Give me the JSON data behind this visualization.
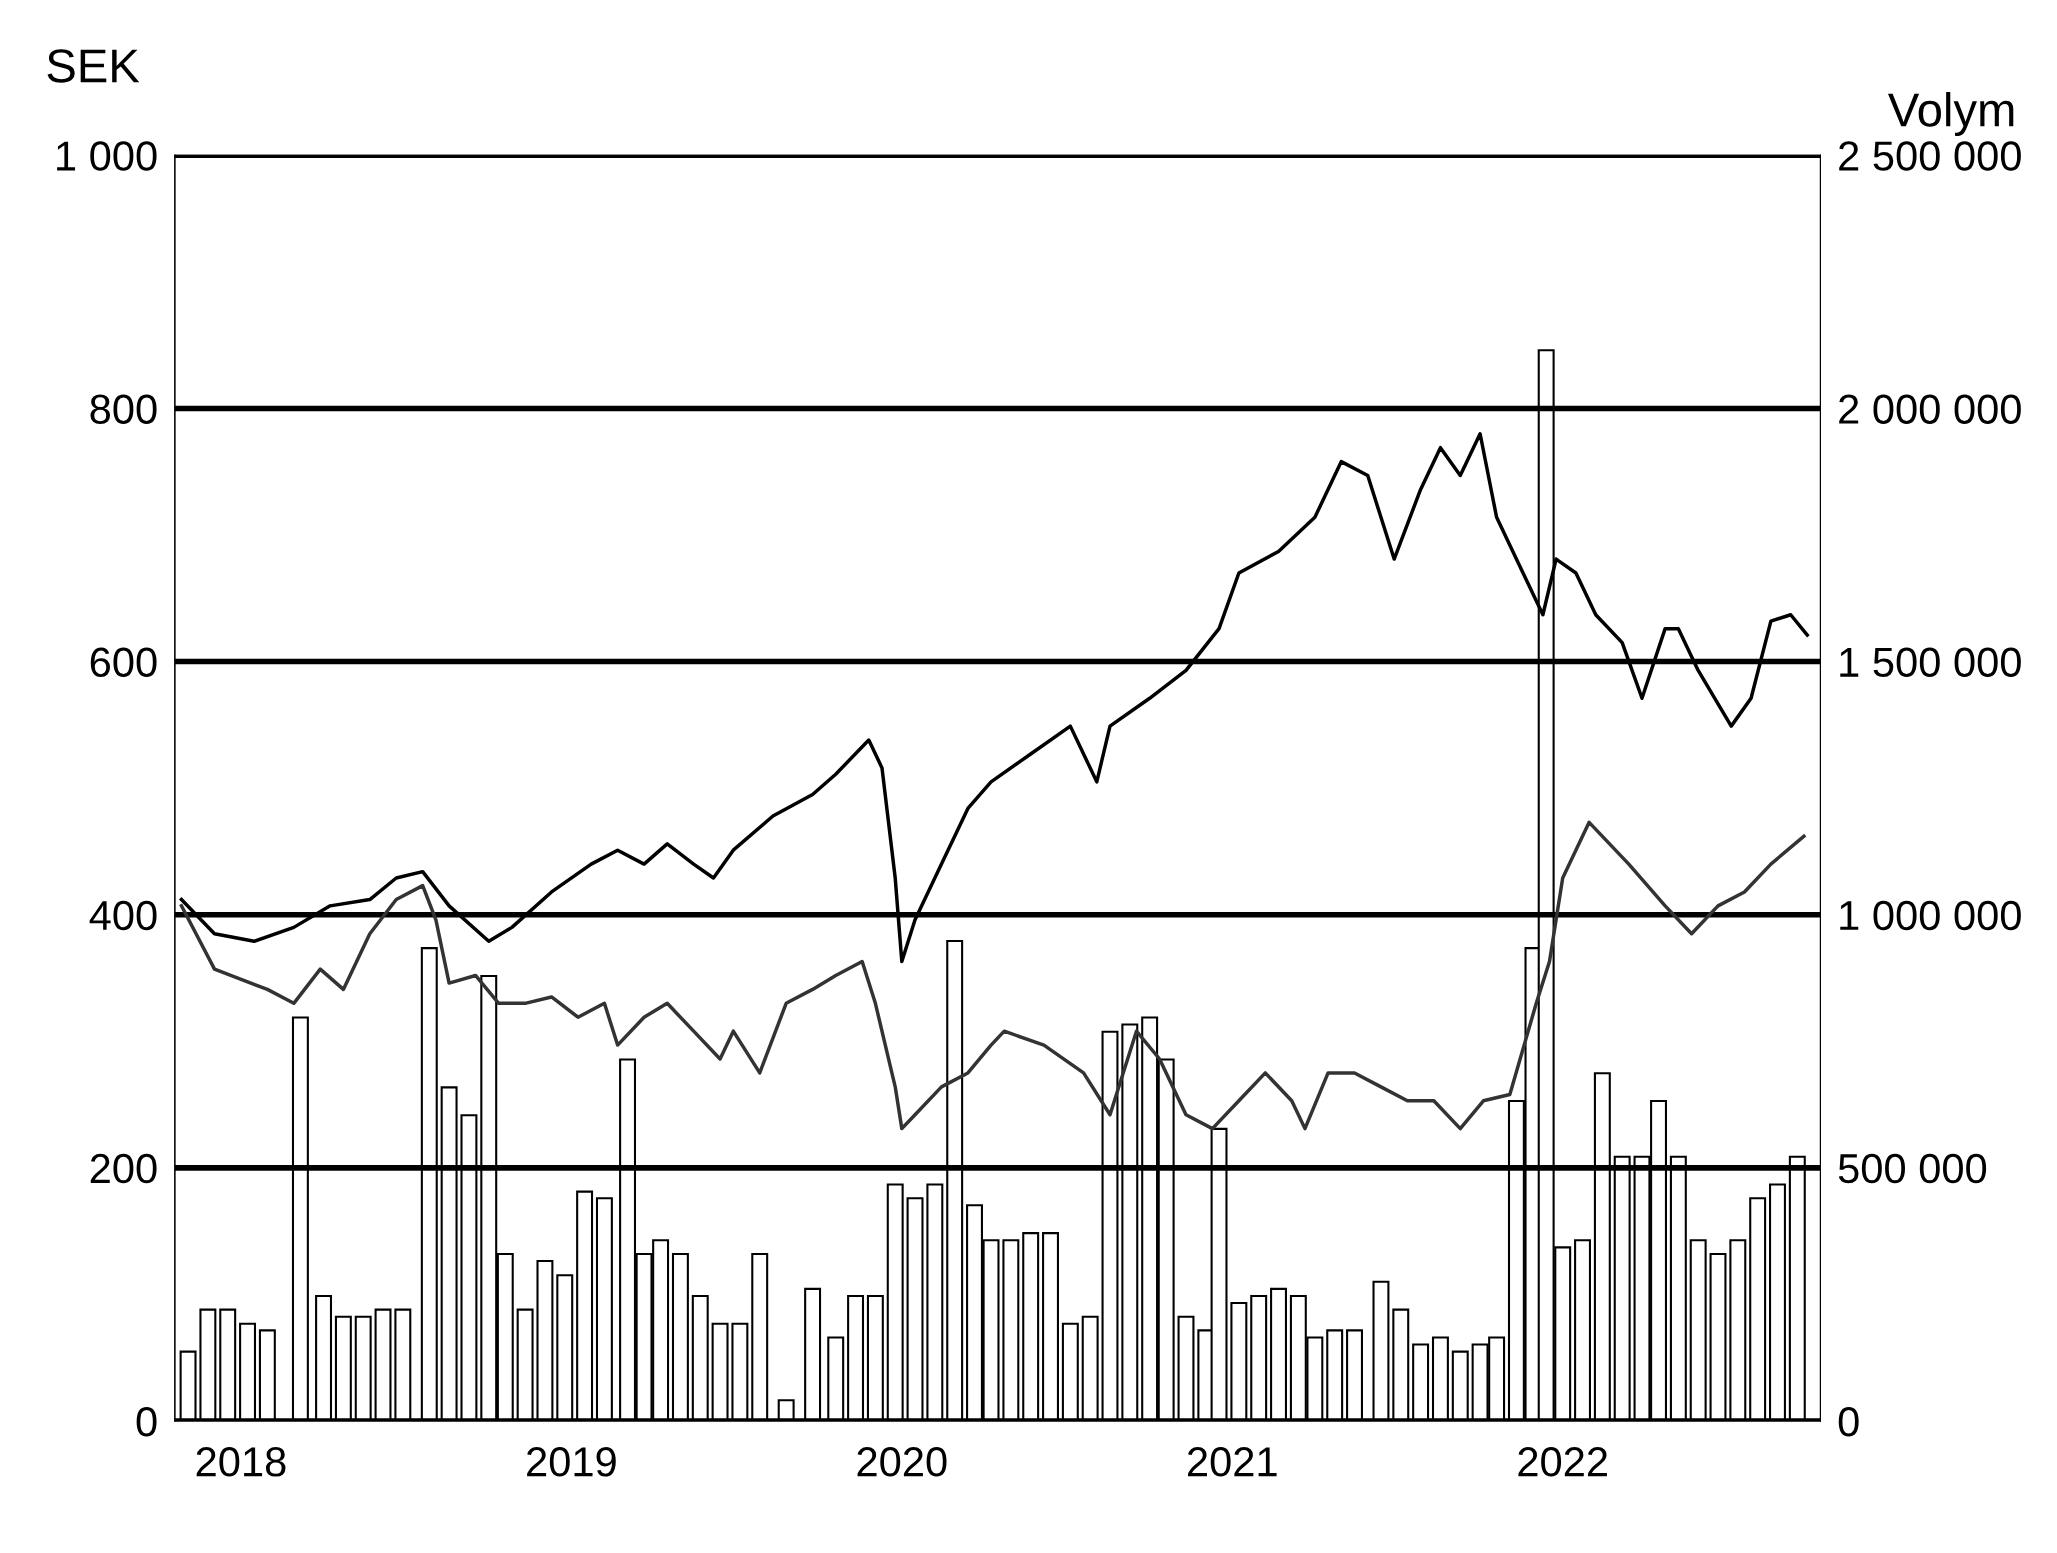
{
  "chart_data": {
    "type": "line",
    "ylabel": "SEK",
    "y2label": "Volym",
    "xlim": [
      2017.8,
      2022.78
    ],
    "xticks": [
      2018,
      2019,
      2020,
      2021,
      2022
    ],
    "ylim": [
      0,
      1000
    ],
    "yticks": [
      0,
      200,
      400,
      600,
      800,
      {
        "value": 1000,
        "label": "1 000"
      }
    ],
    "y2lim": [
      0,
      2500000
    ],
    "y2ticks": [
      0,
      {
        "value": 500000,
        "label": "500 000"
      },
      {
        "value": 1000000,
        "label": "1 000 000"
      },
      {
        "value": 1500000,
        "label": "1 500 000"
      },
      {
        "value": 2000000,
        "label": "2 000 000"
      },
      {
        "value": 2500000,
        "label": "2 500 000"
      }
    ],
    "grid": "y",
    "marker": "none",
    "line_style": "solid",
    "series": [
      {
        "type": "bar",
        "axis": "y2",
        "color": "#ffffff",
        "x": [
          2017.84,
          2017.9,
          2017.96,
          2018.02,
          2018.08,
          2018.18,
          2018.25,
          2018.31,
          2018.37,
          2018.43,
          2018.49,
          2018.57,
          2018.63,
          2018.69,
          2018.75,
          2018.8,
          2018.86,
          2018.92,
          2018.98,
          2019.04,
          2019.1,
          2019.17,
          2019.22,
          2019.27,
          2019.33,
          2019.39,
          2019.45,
          2019.51,
          2019.57,
          2019.65,
          2019.73,
          2019.8,
          2019.86,
          2019.92,
          2019.98,
          2020.04,
          2020.1,
          2020.16,
          2020.22,
          2020.27,
          2020.33,
          2020.39,
          2020.45,
          2020.51,
          2020.57,
          2020.63,
          2020.69,
          2020.75,
          2020.8,
          2020.86,
          2020.92,
          2020.96,
          2021.02,
          2021.08,
          2021.14,
          2021.2,
          2021.25,
          2021.31,
          2021.37,
          2021.45,
          2021.51,
          2021.57,
          2021.63,
          2021.69,
          2021.75,
          2021.8,
          2021.86,
          2021.91,
          2021.95,
          2022.0,
          2022.06,
          2022.12,
          2022.18,
          2022.24,
          2022.29,
          2022.35,
          2022.41,
          2022.47,
          2022.53,
          2022.59,
          2022.65,
          2022.71
        ],
        "values": [
          137000,
          220000,
          220000,
          192000,
          179000,
          797000,
          247000,
          206000,
          206000,
          220000,
          220000,
          934000,
          659000,
          604000,
          879000,
          330000,
          220000,
          316000,
          288000,
          453000,
          440000,
          714000,
          330000,
          357000,
          330000,
          247000,
          192000,
          192000,
          330000,
          41000,
          261000,
          165000,
          247000,
          247000,
          467000,
          440000,
          467000,
          948000,
          426000,
          357000,
          357000,
          371000,
          371000,
          192000,
          206000,
          769000,
          783000,
          797000,
          714000,
          206000,
          179000,
          577000,
          233000,
          247000,
          261000,
          247000,
          165000,
          179000,
          179000,
          275000,
          220000,
          151000,
          165000,
          137000,
          151000,
          165000,
          632000,
          934000,
          2115000,
          343000,
          357000,
          687000,
          522000,
          522000,
          632000,
          522000,
          357000,
          330000,
          357000,
          440000,
          467000,
          522000
        ]
      },
      {
        "color": "#000000",
        "x": [
          2017.82,
          2017.92,
          2018.04,
          2018.16,
          2018.27,
          2018.39,
          2018.47,
          2018.55,
          2018.63,
          2018.75,
          2018.82,
          2018.94,
          2019.06,
          2019.14,
          2019.22,
          2019.29,
          2019.37,
          2019.43,
          2019.49,
          2019.61,
          2019.73,
          2019.8,
          2019.9,
          2019.94,
          2019.98,
          2020.0,
          2020.04,
          2020.12,
          2020.2,
          2020.27,
          2020.39,
          2020.51,
          2020.59,
          2020.63,
          2020.75,
          2020.86,
          2020.96,
          2021.02,
          2021.14,
          2021.25,
          2021.33,
          2021.41,
          2021.49,
          2021.57,
          2021.63,
          2021.69,
          2021.75,
          2021.8,
          2021.88,
          2021.94,
          2021.98,
          2022.04,
          2022.1,
          2022.18,
          2022.24,
          2022.31,
          2022.35,
          2022.41,
          2022.51,
          2022.57,
          2022.63,
          2022.69,
          2022.74
        ],
        "values": [
          412,
          385,
          379,
          390,
          407,
          412,
          429,
          434,
          407,
          379,
          390,
          418,
          440,
          451,
          440,
          456,
          440,
          429,
          451,
          478,
          495,
          511,
          538,
          516,
          429,
          363,
          396,
          440,
          484,
          505,
          527,
          549,
          505,
          549,
          571,
          593,
          626,
          670,
          687,
          714,
          758,
          747,
          681,
          736,
          769,
          747,
          780,
          714,
          670,
          637,
          681,
          670,
          637,
          615,
          571,
          626,
          626,
          593,
          549,
          571,
          632,
          637,
          621
        ]
      },
      {
        "color": "#333333",
        "x": [
          2017.82,
          2017.92,
          2018.08,
          2018.16,
          2018.24,
          2018.31,
          2018.39,
          2018.47,
          2018.55,
          2018.59,
          2018.63,
          2018.71,
          2018.78,
          2018.86,
          2018.94,
          2019.02,
          2019.1,
          2019.14,
          2019.22,
          2019.29,
          2019.37,
          2019.45,
          2019.49,
          2019.57,
          2019.65,
          2019.73,
          2019.8,
          2019.88,
          2019.92,
          2019.98,
          2020.0,
          2020.04,
          2020.12,
          2020.2,
          2020.27,
          2020.31,
          2020.43,
          2020.55,
          2020.63,
          2020.71,
          2020.78,
          2020.86,
          2020.94,
          2021.02,
          2021.1,
          2021.18,
          2021.22,
          2021.29,
          2021.37,
          2021.45,
          2021.53,
          2021.61,
          2021.69,
          2021.76,
          2021.84,
          2021.92,
          2021.96,
          2022.0,
          2022.08,
          2022.2,
          2022.31,
          2022.39,
          2022.47,
          2022.55,
          2022.63,
          2022.73
        ],
        "values": [
          407,
          357,
          341,
          330,
          357,
          341,
          385,
          412,
          423,
          396,
          346,
          352,
          330,
          330,
          335,
          319,
          330,
          297,
          319,
          330,
          308,
          286,
          308,
          275,
          330,
          341,
          352,
          363,
          330,
          264,
          231,
          242,
          264,
          275,
          297,
          308,
          297,
          275,
          242,
          308,
          286,
          242,
          231,
          253,
          275,
          253,
          231,
          275,
          275,
          264,
          253,
          253,
          231,
          253,
          258,
          330,
          363,
          429,
          473,
          440,
          407,
          385,
          407,
          418,
          440,
          462
        ]
      }
    ]
  }
}
